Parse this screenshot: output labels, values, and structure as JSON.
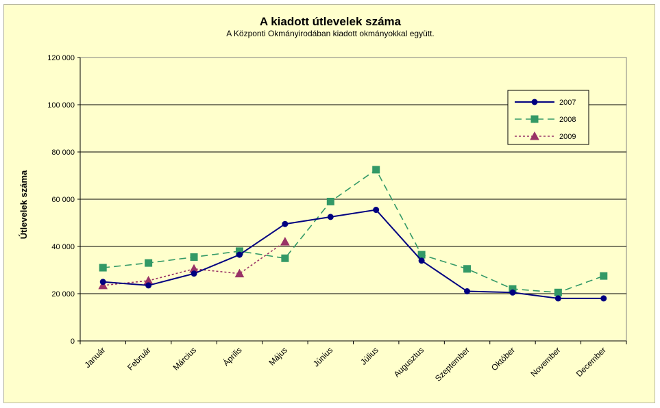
{
  "chart_data": {
    "type": "line",
    "title": "A  kiadott útlevelek száma",
    "subtitle": "A Központi Okmányirodában kiadott okmányokkal együtt.",
    "xlabel": "",
    "ylabel": "Útlevelek száma",
    "ylim": [
      0,
      120000
    ],
    "yticks": [
      0,
      20000,
      40000,
      60000,
      80000,
      100000,
      120000
    ],
    "ytick_labels": [
      "0",
      "20 000",
      "40 000",
      "60 000",
      "80 000",
      "100 000",
      "120 000"
    ],
    "grid": "horizontal",
    "legend_position": "top-right",
    "categories": [
      "Január",
      "Február",
      "Március",
      "Április",
      "Május",
      "Június",
      "Július",
      "Augusztus",
      "Szeptember",
      "Október",
      "November",
      "December"
    ],
    "series": [
      {
        "name": "2007",
        "color": "#000080",
        "dash": "solid",
        "marker": "circle",
        "values": [
          25000,
          23500,
          28500,
          36500,
          49500,
          52500,
          55500,
          34000,
          21000,
          20500,
          18000,
          18000
        ]
      },
      {
        "name": "2008",
        "color": "#339966",
        "dash": "long-dash",
        "marker": "square",
        "values": [
          31000,
          33000,
          35500,
          38000,
          35000,
          59000,
          72500,
          36500,
          30500,
          22000,
          20500,
          27500
        ]
      },
      {
        "name": "2009",
        "color": "#993366",
        "dash": "dotted",
        "marker": "triangle",
        "values": [
          23500,
          25500,
          30500,
          28500,
          42000,
          null,
          null,
          null,
          null,
          null,
          null,
          null
        ]
      }
    ]
  }
}
